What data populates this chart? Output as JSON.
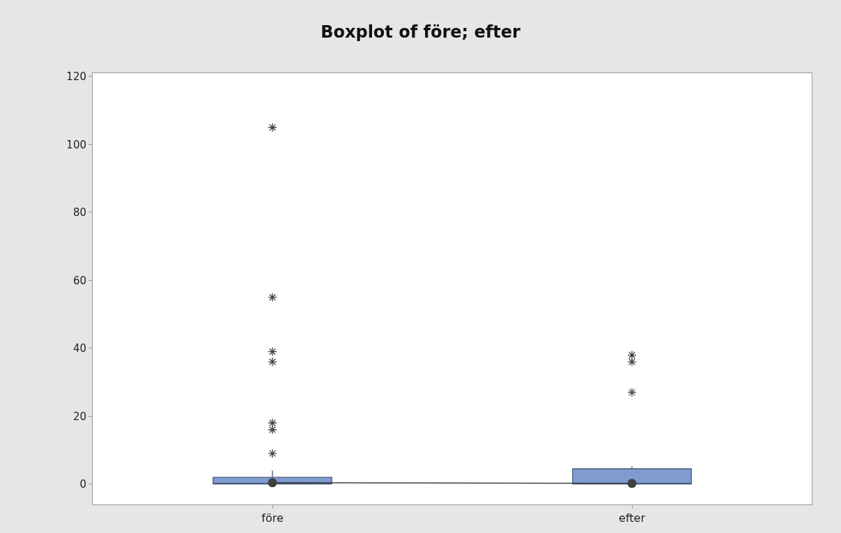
{
  "chart_data": {
    "type": "box",
    "title": "Boxplot of före; efter",
    "categories": [
      "före",
      "efter"
    ],
    "boxes": [
      {
        "q1": 0,
        "median": 0,
        "q3": 2,
        "high": 4,
        "outliers": [
          105,
          55,
          39,
          36,
          18,
          16,
          9
        ]
      },
      {
        "q1": 0,
        "median": 0,
        "q3": 4.5,
        "high": 5.3,
        "outliers": [
          38,
          36,
          27
        ]
      }
    ],
    "color": "#7f9bd0",
    "series": [
      {
        "type": "line",
        "color": "#404040",
        "values": [
          0.4,
          0.2
        ]
      }
    ],
    "marker": "circle",
    "ylim": [
      -6,
      121
    ],
    "yticks": [
      0,
      20,
      40,
      60,
      80,
      100,
      120
    ]
  }
}
